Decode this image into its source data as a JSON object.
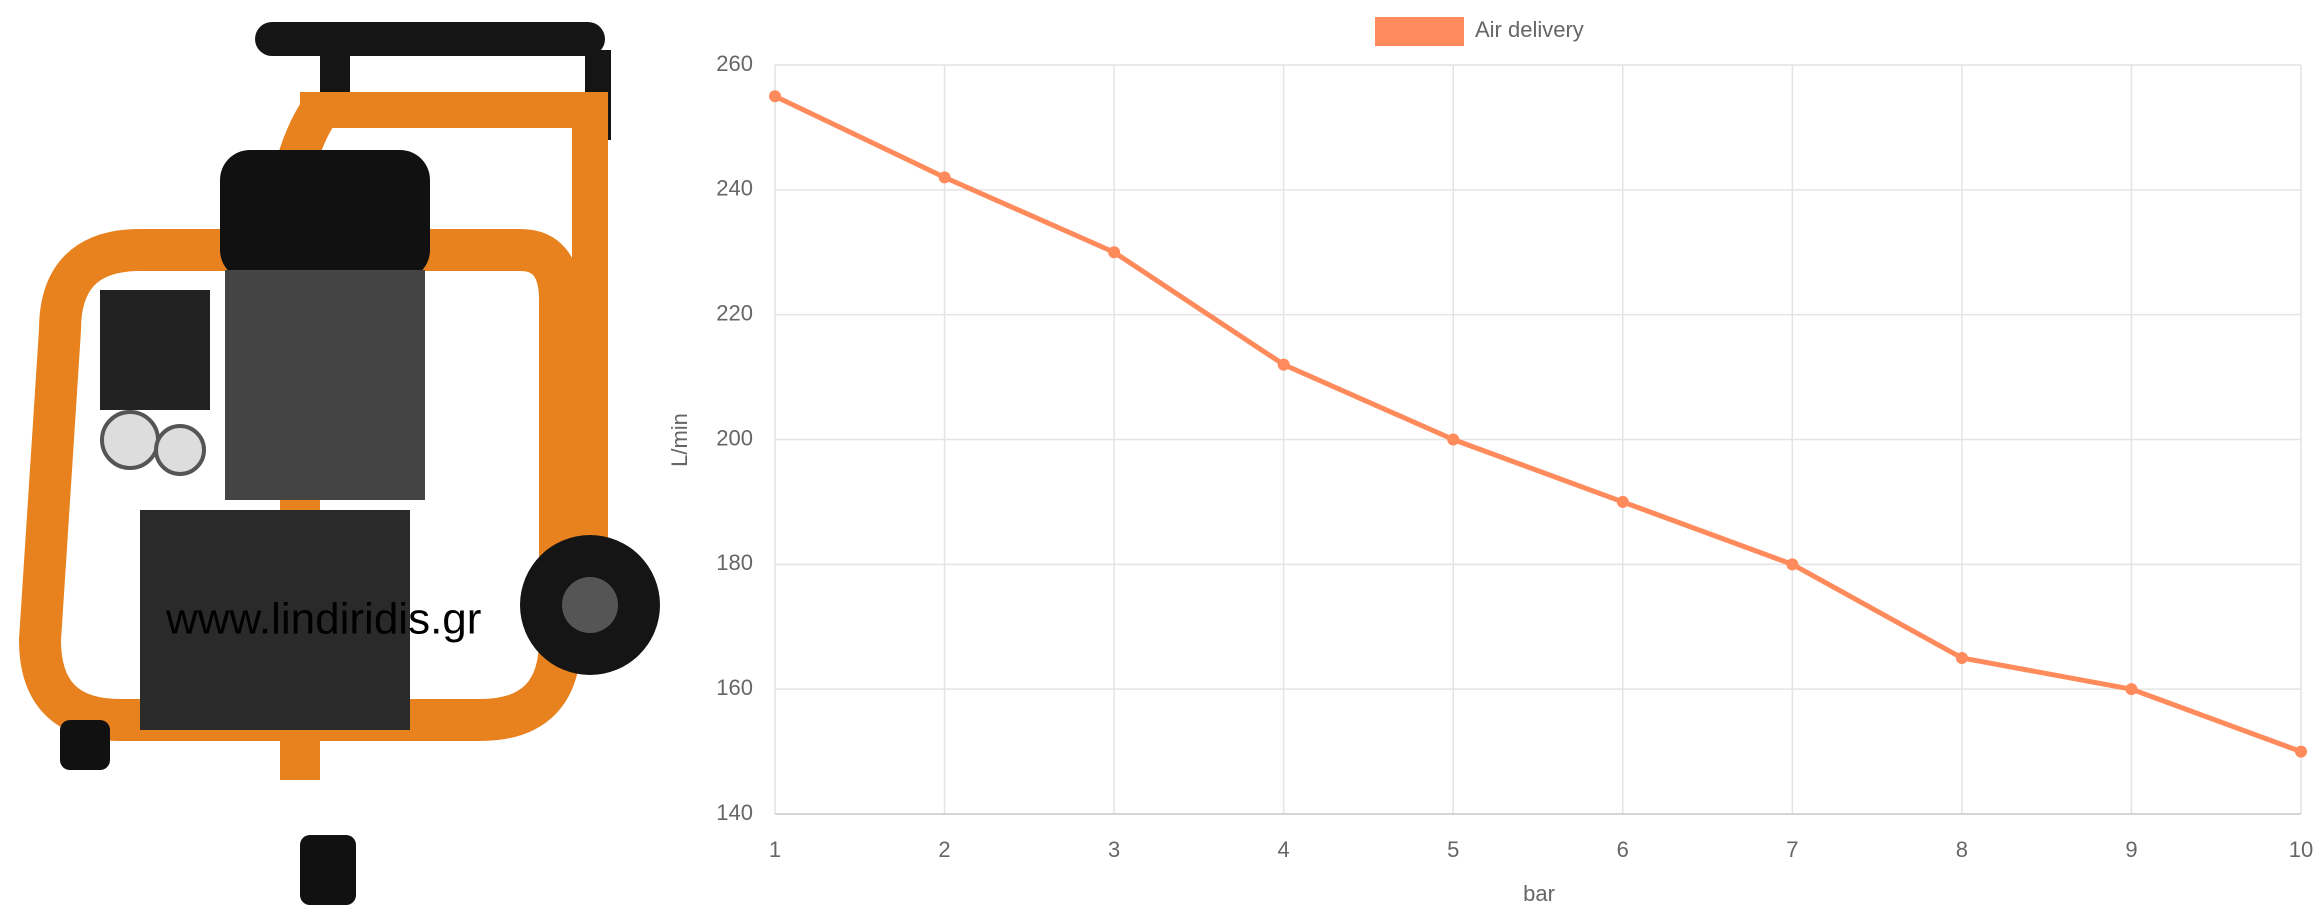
{
  "product_image": {
    "watermark": "www.lindiridis.gr"
  },
  "chart_data": {
    "type": "line",
    "x": [
      1,
      2,
      3,
      4,
      5,
      6,
      7,
      8,
      9,
      10
    ],
    "series": [
      {
        "name": "Air delivery",
        "color": "#ff8a5c",
        "values": [
          255,
          242,
          230,
          212,
          200,
          190,
          180,
          165,
          160,
          150
        ]
      }
    ],
    "xlim": [
      1,
      10
    ],
    "xticks": [
      1,
      2,
      3,
      4,
      5,
      6,
      7,
      8,
      9,
      10
    ],
    "ylim": [
      140,
      260
    ],
    "yticks": [
      140,
      160,
      180,
      200,
      220,
      240,
      260
    ],
    "x_label": "bar",
    "y_label": "L/min",
    "grid": true,
    "legend": "top"
  }
}
